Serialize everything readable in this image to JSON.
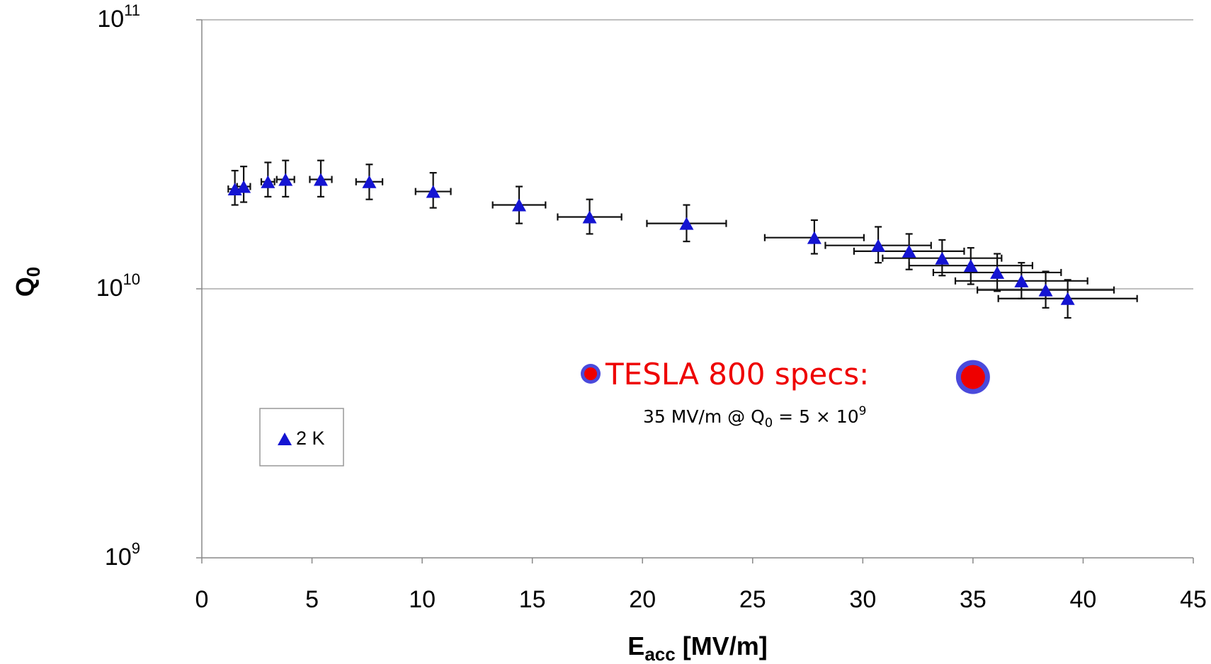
{
  "chart_data": {
    "type": "scatter",
    "title": "",
    "xlabel": {
      "main": "E",
      "sub": "acc",
      "rest": " [MV/m]"
    },
    "ylabel": {
      "main": "Q",
      "sub": "0"
    },
    "xlim": [
      0,
      45
    ],
    "xticks": [
      "0",
      "5",
      "10",
      "15",
      "20",
      "25",
      "30",
      "35",
      "40",
      "45"
    ],
    "ylim": [
      1000000000.0,
      100000000000.0
    ],
    "yscale": "log",
    "yticks": [
      {
        "value": 100000000000.0,
        "base": "10",
        "exp": "11"
      },
      {
        "value": 10000000000.0,
        "base": "10",
        "exp": "10"
      },
      {
        "value": 1000000000.0,
        "base": "10",
        "exp": "9"
      }
    ],
    "grid": "horizontal major lines",
    "legend_placement": "lower-left",
    "series": [
      {
        "name": "2 K",
        "marker": "triangle",
        "color": "#1414d2",
        "points": [
          {
            "x": 1.5,
            "y": 23500000000.0,
            "xerr": 0.3,
            "yerr_low": 3000000000.0,
            "yerr_high": 4000000000.0
          },
          {
            "x": 1.9,
            "y": 24000000000.0,
            "xerr": 0.3,
            "yerr_low": 3000000000.0,
            "yerr_high": 4500000000.0
          },
          {
            "x": 3.0,
            "y": 25000000000.0,
            "xerr": 0.3,
            "yerr_low": 3000000000.0,
            "yerr_high": 4500000000.0
          },
          {
            "x": 3.8,
            "y": 25500000000.0,
            "xerr": 0.4,
            "yerr_low": 3500000000.0,
            "yerr_high": 4500000000.0
          },
          {
            "x": 5.4,
            "y": 25500000000.0,
            "xerr": 0.5,
            "yerr_low": 3500000000.0,
            "yerr_high": 4500000000.0
          },
          {
            "x": 7.6,
            "y": 25000000000.0,
            "xerr": 0.6,
            "yerr_low": 3500000000.0,
            "yerr_high": 4000000000.0
          },
          {
            "x": 10.5,
            "y": 23000000000.0,
            "xerr": 0.8,
            "yerr_low": 3000000000.0,
            "yerr_high": 4000000000.0
          },
          {
            "x": 14.4,
            "y": 20500000000.0,
            "xerr": 1.2,
            "yerr_low": 3000000000.0,
            "yerr_high": 3500000000.0
          },
          {
            "x": 17.6,
            "y": 18500000000.0,
            "xerr": 1.45,
            "yerr_low": 2500000000.0,
            "yerr_high": 3000000000.0
          },
          {
            "x": 22.0,
            "y": 17500000000.0,
            "xerr": 1.8,
            "yerr_low": 2500000000.0,
            "yerr_high": 3000000000.0
          },
          {
            "x": 27.8,
            "y": 15500000000.0,
            "xerr": 2.25,
            "yerr_low": 2000000000.0,
            "yerr_high": 2500000000.0
          },
          {
            "x": 30.7,
            "y": 14500000000.0,
            "xerr": 2.4,
            "yerr_low": 2000000000.0,
            "yerr_high": 2500000000.0
          },
          {
            "x": 32.1,
            "y": 13800000000.0,
            "xerr": 2.5,
            "yerr_low": 2000000000.0,
            "yerr_high": 2200000000.0
          },
          {
            "x": 33.6,
            "y": 13000000000.0,
            "xerr": 2.7,
            "yerr_low": 1800000000.0,
            "yerr_high": 2200000000.0
          },
          {
            "x": 34.9,
            "y": 12200000000.0,
            "xerr": 2.8,
            "yerr_low": 1800000000.0,
            "yerr_high": 2000000000.0
          },
          {
            "x": 36.1,
            "y": 11500000000.0,
            "xerr": 2.9,
            "yerr_low": 1700000000.0,
            "yerr_high": 2000000000.0
          },
          {
            "x": 37.2,
            "y": 10700000000.0,
            "xerr": 3.0,
            "yerr_low": 1500000000.0,
            "yerr_high": 1800000000.0
          },
          {
            "x": 38.3,
            "y": 9900000000.0,
            "xerr": 3.1,
            "yerr_low": 1400000000.0,
            "yerr_high": 1700000000.0
          },
          {
            "x": 39.3,
            "y": 9200000000.0,
            "xerr": 3.15,
            "yerr_low": 1400000000.0,
            "yerr_high": 1600000000.0
          }
        ]
      }
    ],
    "spec": {
      "x": 35,
      "y": 4700000000.0,
      "title": "TESLA 800 specs:",
      "note": {
        "pre": "35 MV/m @ Q",
        "sub": "0",
        "mid": " = 5 × 10",
        "sup": "9"
      },
      "fill": "#ee0000",
      "ring": "#4a4adc"
    }
  }
}
